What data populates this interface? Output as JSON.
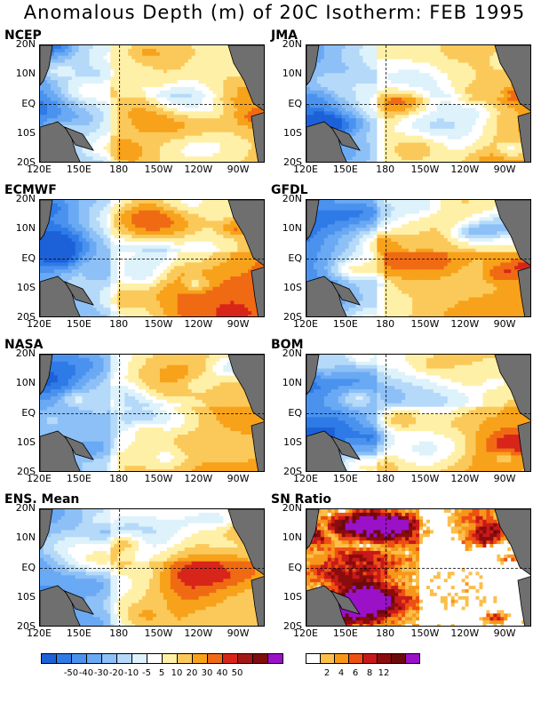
{
  "title": "Anomalous Depth (m) of 20C Isotherm: FEB 1995",
  "lat_labels": [
    "20N",
    "10N",
    "EQ",
    "10S",
    "20S"
  ],
  "lon_labels": [
    "120E",
    "150E",
    "180",
    "150W",
    "120W",
    "90W"
  ],
  "panels": [
    {
      "name": "NCEP",
      "type": "anomaly",
      "seed": 11,
      "west_cool": 0.9,
      "east_warm": 0.35
    },
    {
      "name": "JMA",
      "type": "anomaly",
      "seed": 23,
      "west_cool": 0.8,
      "east_warm": 0.55
    },
    {
      "name": "ECMWF",
      "type": "anomaly",
      "seed": 37,
      "west_cool": 0.75,
      "east_warm": 0.75
    },
    {
      "name": "GFDL",
      "type": "anomaly",
      "seed": 41,
      "west_cool": 0.85,
      "east_warm": 0.6
    },
    {
      "name": "NASA",
      "type": "anomaly",
      "seed": 53,
      "west_cool": 0.75,
      "east_warm": 0.6
    },
    {
      "name": "BOM",
      "type": "anomaly",
      "seed": 67,
      "west_cool": 0.85,
      "east_warm": 0.55
    },
    {
      "name": "ENS. Mean",
      "type": "anomaly",
      "seed": 79,
      "west_cool": 0.7,
      "east_warm": 0.55
    },
    {
      "name": "SN Ratio",
      "type": "snr",
      "seed": 97,
      "west_cool": 0,
      "east_warm": 0
    }
  ],
  "chart_data": {
    "type": "heatmap",
    "title": "Anomalous Depth (m) of 20C Isotherm: FEB 1995",
    "x_axis": {
      "labels": [
        "120E",
        "150E",
        "180",
        "150W",
        "120W",
        "90W"
      ],
      "range": [
        "120E",
        "70W"
      ]
    },
    "y_axis": {
      "labels": [
        "20N",
        "10N",
        "EQ",
        "10S",
        "20S"
      ],
      "range": [
        "20S",
        "20N"
      ]
    },
    "reference_lines": [
      "EQ",
      "180"
    ],
    "anomaly_colorbar": {
      "labels": [
        "-50",
        "-40",
        "-30",
        "-20",
        "-10",
        "-5",
        "5",
        "10",
        "20",
        "30",
        "40",
        "50"
      ],
      "colors": [
        "#1d61d8",
        "#2e7ae6",
        "#4a92ee",
        "#6aa9f3",
        "#8dc0f6",
        "#b5d9f9",
        "#ddf2fb",
        "#ffffff",
        "#fff0a8",
        "#fbc95a",
        "#f7a21a",
        "#f06a14",
        "#d8251a",
        "#a31717",
        "#7f0d0d",
        "#9a11c8"
      ]
    },
    "snr_colorbar": {
      "labels": [
        "2",
        "4",
        "6",
        "8",
        "12"
      ],
      "colors": [
        "#ffffff",
        "#fbbf4a",
        "#f7971a",
        "#ee4f13",
        "#c8191a",
        "#8a0c0c",
        "#6b0a0a",
        "#9a11c8"
      ]
    },
    "series": [
      {
        "name": "NCEP",
        "pattern": "negative anomalies west of 180 (about -20 to -40 m), weak positive anomalies east"
      },
      {
        "name": "JMA",
        "pattern": "negative anomalies in western Pacific, positive 10-20 m band south of equator in the east"
      },
      {
        "name": "ECMWF",
        "pattern": "negative west, broad positive 10-30 m south of equator east of 150W"
      },
      {
        "name": "GFDL",
        "pattern": "negative west, patchy positive 10-30 m east"
      },
      {
        "name": "NASA",
        "pattern": "negative west, positive 5-20 m south of equator east"
      },
      {
        "name": "BOM",
        "pattern": "negative west, positive 10-30 m east"
      },
      {
        "name": "ENS. Mean",
        "pattern": "negative west of 180 (-10 to -30 m), positive 5-20 m in southeast"
      },
      {
        "name": "SN Ratio",
        "pattern": "high ratios (6-12) scattered across west-central Pacific"
      }
    ]
  }
}
